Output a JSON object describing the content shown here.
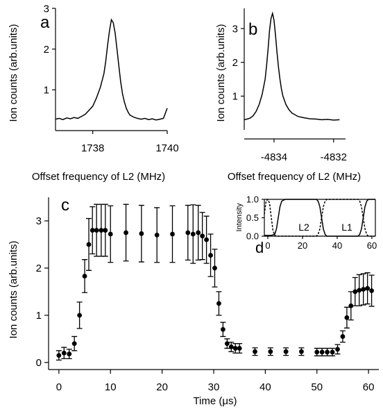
{
  "chart_data": [
    {
      "panel": "a",
      "type": "line",
      "ylabel": "Ion counts (arb.units)",
      "xlabel": "Offset frequency of L2 (MHz)",
      "xlim": [
        1737.0,
        1740.0
      ],
      "ylim": [
        0,
        3
      ],
      "xticks": [
        1738,
        1740
      ],
      "yticks": [
        1,
        2,
        3
      ],
      "series": [
        {
          "x": [
            1737.0,
            1737.1,
            1737.2,
            1737.3,
            1737.4,
            1737.5,
            1737.6,
            1737.7,
            1737.8,
            1737.9,
            1738.0,
            1738.1,
            1738.2,
            1738.3,
            1738.35,
            1738.4,
            1738.45,
            1738.5,
            1738.55,
            1738.6,
            1738.65,
            1738.7,
            1738.75,
            1738.8,
            1738.85,
            1738.9,
            1738.95,
            1739.0,
            1739.1,
            1739.2,
            1739.3,
            1739.4,
            1739.5,
            1739.6,
            1739.7,
            1739.8,
            1739.9,
            1740.0
          ],
          "y": [
            0.28,
            0.3,
            0.27,
            0.31,
            0.29,
            0.32,
            0.3,
            0.35,
            0.4,
            0.5,
            0.6,
            0.8,
            1.05,
            1.4,
            1.7,
            2.1,
            2.45,
            2.72,
            2.65,
            2.4,
            2.0,
            1.6,
            1.2,
            0.9,
            0.7,
            0.55,
            0.45,
            0.38,
            0.33,
            0.3,
            0.28,
            0.3,
            0.27,
            0.29,
            0.26,
            0.28,
            0.3,
            0.55
          ]
        }
      ]
    },
    {
      "panel": "b",
      "type": "line",
      "ylabel": "Ion counts (arb.units)",
      "xlabel": "Offset frequency of L2 (MHz)",
      "xlim": [
        -4835.0,
        -4831.6
      ],
      "ylim": [
        0,
        3.6
      ],
      "xticks": [
        -4834,
        -4832
      ],
      "yticks": [
        1,
        2,
        3
      ],
      "series": [
        {
          "x": [
            -4835.0,
            -4834.9,
            -4834.8,
            -4834.7,
            -4834.6,
            -4834.5,
            -4834.4,
            -4834.3,
            -4834.25,
            -4834.2,
            -4834.15,
            -4834.1,
            -4834.05,
            -4834.0,
            -4833.95,
            -4833.9,
            -4833.85,
            -4833.8,
            -4833.75,
            -4833.7,
            -4833.6,
            -4833.5,
            -4833.4,
            -4833.3,
            -4833.2,
            -4833.0,
            -4832.8,
            -4832.6,
            -4832.4,
            -4832.2,
            -4832.0,
            -4831.8
          ],
          "y": [
            0.3,
            0.32,
            0.35,
            0.42,
            0.55,
            0.75,
            1.05,
            1.5,
            1.9,
            2.4,
            2.95,
            3.3,
            3.45,
            3.25,
            2.8,
            2.3,
            1.85,
            1.5,
            1.2,
            1.0,
            0.75,
            0.6,
            0.5,
            0.45,
            0.4,
            0.36,
            0.33,
            0.32,
            0.3,
            0.31,
            0.29,
            0.3
          ]
        }
      ]
    },
    {
      "panel": "c",
      "type": "scatter",
      "ylabel": "Ion counts (arb.units)",
      "xlabel": "Time (μs)",
      "xlim": [
        -2,
        62
      ],
      "ylim": [
        -0.15,
        3.5
      ],
      "xticks": [
        0,
        10,
        20,
        30,
        40,
        50,
        60
      ],
      "yticks": [
        0,
        1,
        2,
        3
      ],
      "series": [
        {
          "x": [
            0,
            1,
            2,
            3,
            4,
            5,
            5.8,
            6.5,
            7.3,
            8.2,
            9,
            10,
            13,
            16,
            19,
            22,
            25,
            26,
            27,
            27.8,
            28.6,
            29.4,
            30.2,
            31,
            31.8,
            32.6,
            33.4,
            34.2,
            35,
            38,
            41,
            44,
            47,
            50,
            51,
            52,
            53,
            54,
            55,
            55.8,
            56.6,
            57.4,
            58.2,
            59,
            59.8,
            60.6
          ],
          "y": [
            0.15,
            0.2,
            0.18,
            0.4,
            1.0,
            1.83,
            2.5,
            2.8,
            2.8,
            2.8,
            2.8,
            2.72,
            2.75,
            2.73,
            2.7,
            2.72,
            2.75,
            2.72,
            2.75,
            2.68,
            2.6,
            2.27,
            2.0,
            1.25,
            0.7,
            0.4,
            0.33,
            0.3,
            0.3,
            0.23,
            0.23,
            0.23,
            0.23,
            0.22,
            0.22,
            0.22,
            0.22,
            0.28,
            0.55,
            0.95,
            1.2,
            1.5,
            1.53,
            1.55,
            1.57,
            1.52
          ],
          "err": [
            0.1,
            0.12,
            0.1,
            0.15,
            0.28,
            0.35,
            0.55,
            0.5,
            0.55,
            0.55,
            0.55,
            0.6,
            0.6,
            0.6,
            0.58,
            0.6,
            0.58,
            0.62,
            0.58,
            0.5,
            0.5,
            0.45,
            0.4,
            0.25,
            0.15,
            0.1,
            0.1,
            0.1,
            0.1,
            0.08,
            0.08,
            0.08,
            0.08,
            0.08,
            0.08,
            0.08,
            0.08,
            0.1,
            0.12,
            0.22,
            0.3,
            0.3,
            0.33,
            0.33,
            0.33,
            0.33
          ]
        }
      ]
    },
    {
      "panel": "d",
      "type": "line",
      "ylabel": "Intensity",
      "xlim": [
        -2,
        62
      ],
      "ylim": [
        0,
        1.0
      ],
      "xticks": [
        0,
        20,
        40,
        60
      ],
      "yticks": [
        0.0,
        0.5,
        1.0
      ],
      "ytick_labels": [
        "0.0",
        "0.5",
        "1.0"
      ],
      "annotations": [
        "L2",
        "L1"
      ],
      "series": [
        {
          "name": "L2",
          "style": "solid",
          "x": [
            -2,
            0,
            2,
            4,
            5,
            6,
            7,
            8,
            10,
            28,
            29,
            30,
            31,
            32,
            33,
            34,
            52,
            53,
            54,
            55,
            56,
            57,
            58,
            60,
            62
          ],
          "y": [
            0.02,
            0.02,
            0.02,
            0.05,
            0.2,
            0.5,
            0.8,
            0.95,
            1.0,
            1.0,
            0.95,
            0.8,
            0.5,
            0.2,
            0.05,
            0.0,
            0.0,
            0.05,
            0.2,
            0.5,
            0.8,
            0.95,
            1.0,
            1.0,
            1.0
          ]
        },
        {
          "name": "L1",
          "style": "dashed",
          "x": [
            -2,
            -1,
            0,
            1,
            2,
            3,
            4,
            5,
            28,
            29,
            30,
            31,
            32,
            33,
            34,
            52,
            53,
            54,
            55,
            56,
            57,
            58,
            62
          ],
          "y": [
            0.6,
            0.95,
            1.0,
            0.9,
            0.5,
            0.15,
            0.02,
            0.0,
            0.0,
            0.05,
            0.2,
            0.5,
            0.8,
            0.95,
            1.0,
            1.0,
            0.95,
            0.8,
            0.5,
            0.2,
            0.05,
            0.0,
            0.0
          ]
        }
      ]
    }
  ]
}
